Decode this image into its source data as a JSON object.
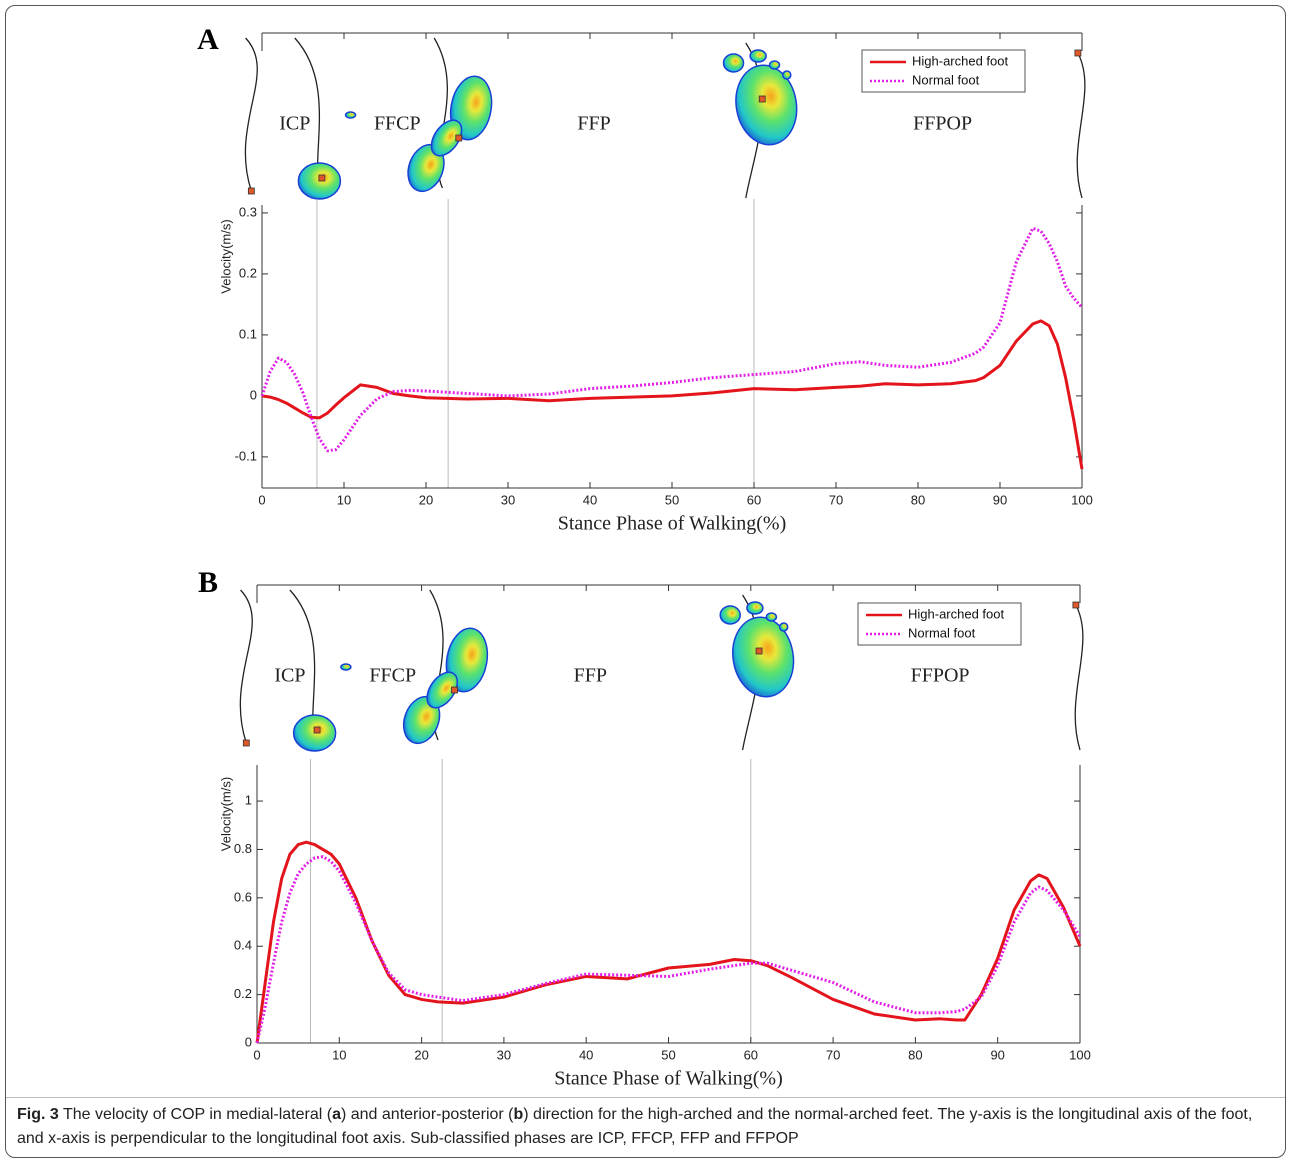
{
  "chart_data": [
    {
      "type": "line",
      "panel_label": "A",
      "ylabel": "Velocity(m/s)",
      "xlabel": "Stance Phase of Walking(%)",
      "x": [
        0,
        1,
        2,
        3,
        4,
        5,
        6,
        7,
        8,
        9,
        10,
        12,
        14,
        16,
        18,
        20,
        25,
        30,
        35,
        40,
        45,
        50,
        55,
        60,
        65,
        70,
        73,
        76,
        80,
        84,
        87,
        88,
        90,
        92,
        94,
        95,
        96,
        97,
        98,
        99,
        100
      ],
      "series": [
        {
          "name": "High-arched foot",
          "color": "#e3141b",
          "style": "solid",
          "values": [
            0,
            -0.002,
            -0.006,
            -0.012,
            -0.02,
            -0.028,
            -0.035,
            -0.036,
            -0.028,
            -0.015,
            -0.003,
            0.018,
            0.014,
            0.004,
            0,
            -0.003,
            -0.005,
            -0.004,
            -0.008,
            -0.004,
            -0.002,
            0,
            0.005,
            0.012,
            0.01,
            0.014,
            0.016,
            0.02,
            0.018,
            0.02,
            0.025,
            0.03,
            0.05,
            0.09,
            0.118,
            0.123,
            0.115,
            0.085,
            0.03,
            -0.04,
            -0.12
          ]
        },
        {
          "name": "Normal foot",
          "color": "#e11fe6",
          "style": "dotted",
          "values": [
            0,
            0.04,
            0.062,
            0.055,
            0.035,
            0.005,
            -0.035,
            -0.07,
            -0.09,
            -0.088,
            -0.072,
            -0.032,
            -0.005,
            0.007,
            0.009,
            0.008,
            0.004,
            0,
            0.003,
            0.012,
            0.016,
            0.022,
            0.03,
            0.035,
            0.04,
            0.053,
            0.056,
            0.05,
            0.047,
            0.055,
            0.07,
            0.08,
            0.12,
            0.22,
            0.275,
            0.27,
            0.25,
            0.22,
            0.18,
            0.16,
            0.145
          ]
        }
      ],
      "xlim": [
        0,
        100
      ],
      "xticks": [
        0,
        10,
        20,
        30,
        40,
        50,
        60,
        70,
        80,
        90,
        100
      ],
      "ylim": [
        -0.151,
        0.313
      ],
      "yticks": [
        -0.1,
        0,
        0.1,
        0.2,
        0.3
      ],
      "phases": [
        "ICP",
        "FFCP",
        "FFP",
        "FFPOP"
      ],
      "phase_boundaries": [
        6.7,
        22.7,
        60
      ],
      "legend": "upper right",
      "grid": false
    },
    {
      "type": "line",
      "panel_label": "B",
      "ylabel": "Velocity(m/s)",
      "xlabel": "Stance Phase of Walking(%)",
      "x": [
        0,
        1,
        2,
        3,
        4,
        5,
        6,
        7,
        8,
        9,
        10,
        12,
        14,
        16,
        18,
        20,
        22,
        25,
        30,
        35,
        40,
        45,
        50,
        55,
        58,
        60,
        62,
        65,
        70,
        75,
        80,
        83,
        85,
        86,
        88,
        90,
        92,
        94,
        95,
        96,
        98,
        100
      ],
      "series": [
        {
          "name": "High-arched foot",
          "color": "#e3141b",
          "style": "solid",
          "values": [
            0,
            0.25,
            0.5,
            0.68,
            0.78,
            0.82,
            0.83,
            0.82,
            0.8,
            0.78,
            0.74,
            0.6,
            0.42,
            0.28,
            0.2,
            0.18,
            0.17,
            0.165,
            0.19,
            0.24,
            0.275,
            0.265,
            0.31,
            0.325,
            0.345,
            0.34,
            0.32,
            0.27,
            0.18,
            0.12,
            0.095,
            0.1,
            0.095,
            0.095,
            0.2,
            0.35,
            0.55,
            0.67,
            0.695,
            0.68,
            0.56,
            0.4
          ]
        },
        {
          "name": "Normal foot",
          "color": "#e11fe6",
          "style": "dotted",
          "values": [
            0,
            0.15,
            0.33,
            0.5,
            0.62,
            0.7,
            0.74,
            0.765,
            0.77,
            0.75,
            0.71,
            0.58,
            0.42,
            0.29,
            0.22,
            0.2,
            0.19,
            0.175,
            0.2,
            0.245,
            0.285,
            0.28,
            0.275,
            0.305,
            0.32,
            0.33,
            0.33,
            0.3,
            0.25,
            0.17,
            0.125,
            0.125,
            0.13,
            0.14,
            0.19,
            0.32,
            0.5,
            0.62,
            0.645,
            0.63,
            0.55,
            0.44
          ]
        }
      ],
      "xlim": [
        0,
        100
      ],
      "xticks": [
        0,
        10,
        20,
        30,
        40,
        50,
        60,
        70,
        80,
        90,
        100
      ],
      "ylim": [
        0,
        1.149
      ],
      "yticks": [
        0,
        0.2,
        0.4,
        0.6,
        0.8,
        1
      ],
      "phases": [
        "ICP",
        "FFCP",
        "FFP",
        "FFPOP"
      ],
      "phase_boundaries": [
        6.5,
        22.5,
        60
      ],
      "legend": "upper right",
      "grid": false
    }
  ],
  "caption": {
    "fig": "Fig. 3",
    "part1": " The velocity of COP in medial-lateral (",
    "a": "a",
    "part2": ") and anterior-posterior (",
    "b": "b",
    "part3": ") direction for the high-arched and the normal-arched feet. The y-axis is the longitudinal axis of the foot, and x-axis is perpendicular to the longitudinal foot axis. Sub-classified phases are ICP, FFCP, FFP and FFPOP"
  }
}
